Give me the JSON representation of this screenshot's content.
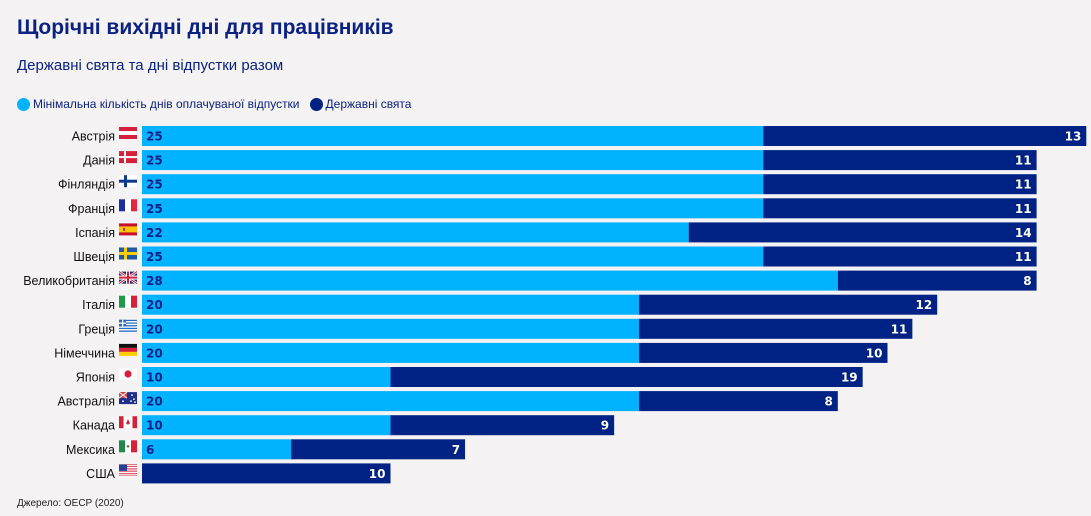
{
  "title": "Щорічні вихідні дні для працівників",
  "subtitle": "Державні свята та дні відпустки разом",
  "source": "Джерело: OECP (2020)",
  "colors": {
    "vacation": "#00b2ff",
    "holidays": "#002285",
    "background": "#f4f2f3",
    "text": "#0b2283"
  },
  "chart_data": {
    "type": "bar",
    "orientation": "horizontal",
    "stacked": true,
    "title": "Щорічні вихідні дні для працівників",
    "subtitle": "Державні свята та дні відпустки разом",
    "legend_position": "top-left",
    "grid": false,
    "xlim": [
      0,
      38
    ],
    "categories": [
      "Австрія",
      "Данія",
      "Фінляндія",
      "Франція",
      "Іспанія",
      "Швеція",
      "Великобританія",
      "Італія",
      "Греція",
      "Німеччина",
      "Японія",
      "Австралія",
      "Канада",
      "Мексика",
      "США"
    ],
    "flags": [
      "at",
      "dk",
      "fi",
      "fr",
      "es",
      "se",
      "gb",
      "it",
      "gr",
      "de",
      "jp",
      "au",
      "ca",
      "mx",
      "us"
    ],
    "series": [
      {
        "name": "Мінімальна кількість днів оплачуваної відпустки",
        "color": "#00b2ff",
        "values": [
          25,
          25,
          25,
          25,
          22,
          25,
          28,
          20,
          20,
          20,
          10,
          20,
          10,
          6,
          0
        ]
      },
      {
        "name": "Державні свята",
        "color": "#002285",
        "values": [
          13,
          11,
          11,
          11,
          14,
          11,
          8,
          12,
          11,
          10,
          19,
          8,
          9,
          7,
          10
        ]
      }
    ]
  }
}
